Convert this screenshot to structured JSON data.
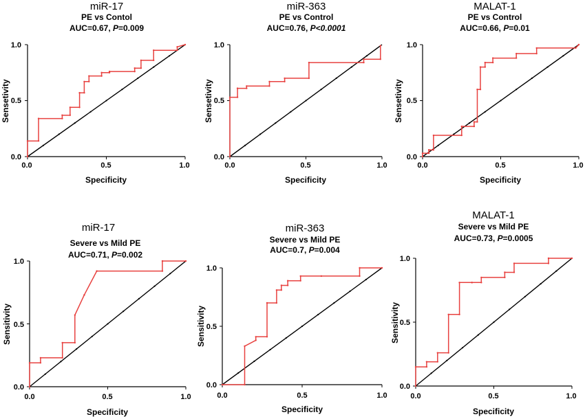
{
  "figure": {
    "background": "#ffffff",
    "axis_color": "#000000",
    "roc_color": "#e8413f",
    "diagonal_color": "#000000"
  },
  "chart_data": [
    {
      "type": "line",
      "title": "miR-17",
      "subtitle": "PE vs Contol",
      "auc_text": {
        "prefix": "AUC=0.67, ",
        "p_label": "P",
        "p_value": "=0.009"
      },
      "xlabel": "Specificity",
      "ylabel": "Sensetivity",
      "xlim": [
        0,
        1
      ],
      "ylim": [
        0,
        1
      ],
      "xticks": [
        "0.0",
        "0.5",
        "1.0"
      ],
      "yticks": [
        "0.0",
        "0.5",
        "1.0"
      ],
      "series": [
        {
          "x": [
            0,
            0,
            0.07,
            0.07,
            0.22,
            0.22,
            0.27,
            0.27,
            0.33,
            0.33,
            0.36,
            0.36,
            0.39,
            0.39,
            0.47,
            0.47,
            0.52,
            0.52,
            0.68,
            0.68,
            0.72,
            0.72,
            0.8,
            0.8,
            0.95,
            0.95,
            1.0
          ],
          "y": [
            0,
            0.14,
            0.14,
            0.34,
            0.34,
            0.37,
            0.37,
            0.44,
            0.44,
            0.57,
            0.57,
            0.67,
            0.67,
            0.72,
            0.72,
            0.75,
            0.75,
            0.76,
            0.76,
            0.79,
            0.79,
            0.86,
            0.86,
            0.95,
            0.95,
            0.98,
            1.0
          ]
        },
        {
          "x": [
            0,
            1
          ],
          "y": [
            0,
            1
          ]
        }
      ]
    },
    {
      "type": "line",
      "title": "miR-363",
      "subtitle": "PE vs Control",
      "auc_text": {
        "prefix": "AUC=0.76, ",
        "p_label": "P",
        "p_value": "<0.0001"
      },
      "xlabel": "Specificity",
      "ylabel": "Sensetivity",
      "xlim": [
        0,
        1
      ],
      "ylim": [
        0,
        1
      ],
      "xticks": [
        "0.0",
        "0.5",
        "1.0"
      ],
      "yticks": [
        "0.0",
        "0.5",
        "1.0"
      ],
      "series": [
        {
          "x": [
            0,
            0,
            0.05,
            0.05,
            0.11,
            0.11,
            0.26,
            0.26,
            0.36,
            0.36,
            0.52,
            0.52,
            0.88,
            0.88,
            0.99,
            0.99
          ],
          "y": [
            0,
            0.53,
            0.53,
            0.61,
            0.61,
            0.63,
            0.63,
            0.67,
            0.67,
            0.7,
            0.7,
            0.84,
            0.84,
            0.87,
            0.87,
            0.99
          ]
        },
        {
          "x": [
            0,
            1
          ],
          "y": [
            0,
            1
          ]
        }
      ]
    },
    {
      "type": "line",
      "title": "MALAT-1",
      "subtitle": "PE vs Control",
      "auc_text": {
        "prefix": "AUC=0.66, ",
        "p_label": "P",
        "p_value": "=0.01"
      },
      "xlabel": "Specificity",
      "ylabel": "Sensetivity",
      "xlim": [
        0,
        1
      ],
      "ylim": [
        0,
        1
      ],
      "xticks": [
        "0.0",
        "0.5",
        "1.0"
      ],
      "yticks": [
        "0.0",
        "0.5",
        "1.0"
      ],
      "series": [
        {
          "x": [
            0,
            0,
            0.04,
            0.04,
            0.07,
            0.07,
            0.25,
            0.25,
            0.33,
            0.33,
            0.35,
            0.35,
            0.37,
            0.37,
            0.4,
            0.4,
            0.45,
            0.45,
            0.6,
            0.6,
            0.73,
            0.73,
            0.98,
            1.0
          ],
          "y": [
            0,
            0.03,
            0.03,
            0.06,
            0.06,
            0.19,
            0.19,
            0.27,
            0.27,
            0.31,
            0.31,
            0.6,
            0.6,
            0.8,
            0.8,
            0.84,
            0.84,
            0.88,
            0.88,
            0.92,
            0.92,
            0.97,
            0.97,
            1.0
          ]
        },
        {
          "x": [
            0,
            1
          ],
          "y": [
            0,
            1
          ]
        }
      ]
    },
    {
      "type": "line",
      "title": "miR-17",
      "subtitle": "Severe vs Mild PE",
      "auc_text": {
        "prefix": "AUC=0.71, ",
        "p_label": "P",
        "p_value": "=0.002"
      },
      "xlabel": "Specificity",
      "ylabel": "Sensitivity",
      "xlim": [
        0,
        1
      ],
      "ylim": [
        0,
        1
      ],
      "xticks": [
        "0.0",
        "0.5",
        "1.0"
      ],
      "yticks": [
        "0.0",
        "0.5",
        "1.0"
      ],
      "series": [
        {
          "x": [
            0,
            0,
            0.07,
            0.07,
            0.21,
            0.21,
            0.29,
            0.29,
            0.35,
            0.35,
            0.43,
            0.43,
            0.85,
            0.85,
            1.0
          ],
          "y": [
            0,
            0.19,
            0.19,
            0.23,
            0.23,
            0.35,
            0.35,
            0.57,
            0.73,
            0.73,
            0.92,
            0.92,
            0.92,
            1.0,
            1.0
          ]
        },
        {
          "x": [
            0,
            1
          ],
          "y": [
            0,
            1
          ]
        }
      ]
    },
    {
      "type": "line",
      "title": "miR-363",
      "subtitle": "Severe vs Mild PE",
      "auc_text": {
        "prefix": "AUC=0.7, ",
        "p_label": "P",
        "p_value": "=0.004"
      },
      "xlabel": "Specificity",
      "ylabel": "Sensitivity",
      "xlim": [
        0,
        1
      ],
      "ylim": [
        0,
        1
      ],
      "xticks": [
        "0.0",
        "0.5",
        "1.0"
      ],
      "yticks": [
        "0.0",
        "0.5",
        "1.0"
      ],
      "series": [
        {
          "x": [
            0,
            0.14,
            0.14,
            0.21,
            0.21,
            0.28,
            0.28,
            0.34,
            0.34,
            0.37,
            0.37,
            0.41,
            0.41,
            0.49,
            0.49,
            0.62,
            0.62,
            0.86,
            0.86,
            1.0
          ],
          "y": [
            0,
            0,
            0.33,
            0.38,
            0.41,
            0.41,
            0.7,
            0.7,
            0.81,
            0.81,
            0.85,
            0.85,
            0.89,
            0.89,
            0.93,
            0.93,
            0.93,
            0.93,
            1.0,
            1.0
          ]
        },
        {
          "x": [
            0,
            1
          ],
          "y": [
            0,
            1
          ]
        }
      ]
    },
    {
      "type": "line",
      "title": "MALAT-1",
      "subtitle": "Severe vs Mild PE",
      "auc_text": {
        "prefix": "AUC=0.73, ",
        "p_label": "P",
        "p_value": "=0.0005"
      },
      "xlabel": "Specificity",
      "ylabel": "Sensitivity",
      "xlim": [
        0,
        1
      ],
      "ylim": [
        0,
        1
      ],
      "xticks": [
        "0.0",
        "0.5",
        "1.0"
      ],
      "yticks": [
        "0.0",
        "0.5",
        "1.0"
      ],
      "series": [
        {
          "x": [
            0,
            0,
            0.07,
            0.07,
            0.14,
            0.14,
            0.21,
            0.21,
            0.28,
            0.28,
            0.36,
            0.36,
            0.42,
            0.42,
            0.57,
            0.57,
            0.63,
            0.63,
            0.85,
            0.85,
            1.0
          ],
          "y": [
            0,
            0.15,
            0.15,
            0.19,
            0.19,
            0.26,
            0.26,
            0.56,
            0.56,
            0.81,
            0.81,
            0.81,
            0.81,
            0.85,
            0.85,
            0.89,
            0.89,
            0.96,
            0.96,
            1.0,
            1.0
          ]
        },
        {
          "x": [
            0,
            1
          ],
          "y": [
            0,
            1
          ]
        }
      ]
    }
  ]
}
